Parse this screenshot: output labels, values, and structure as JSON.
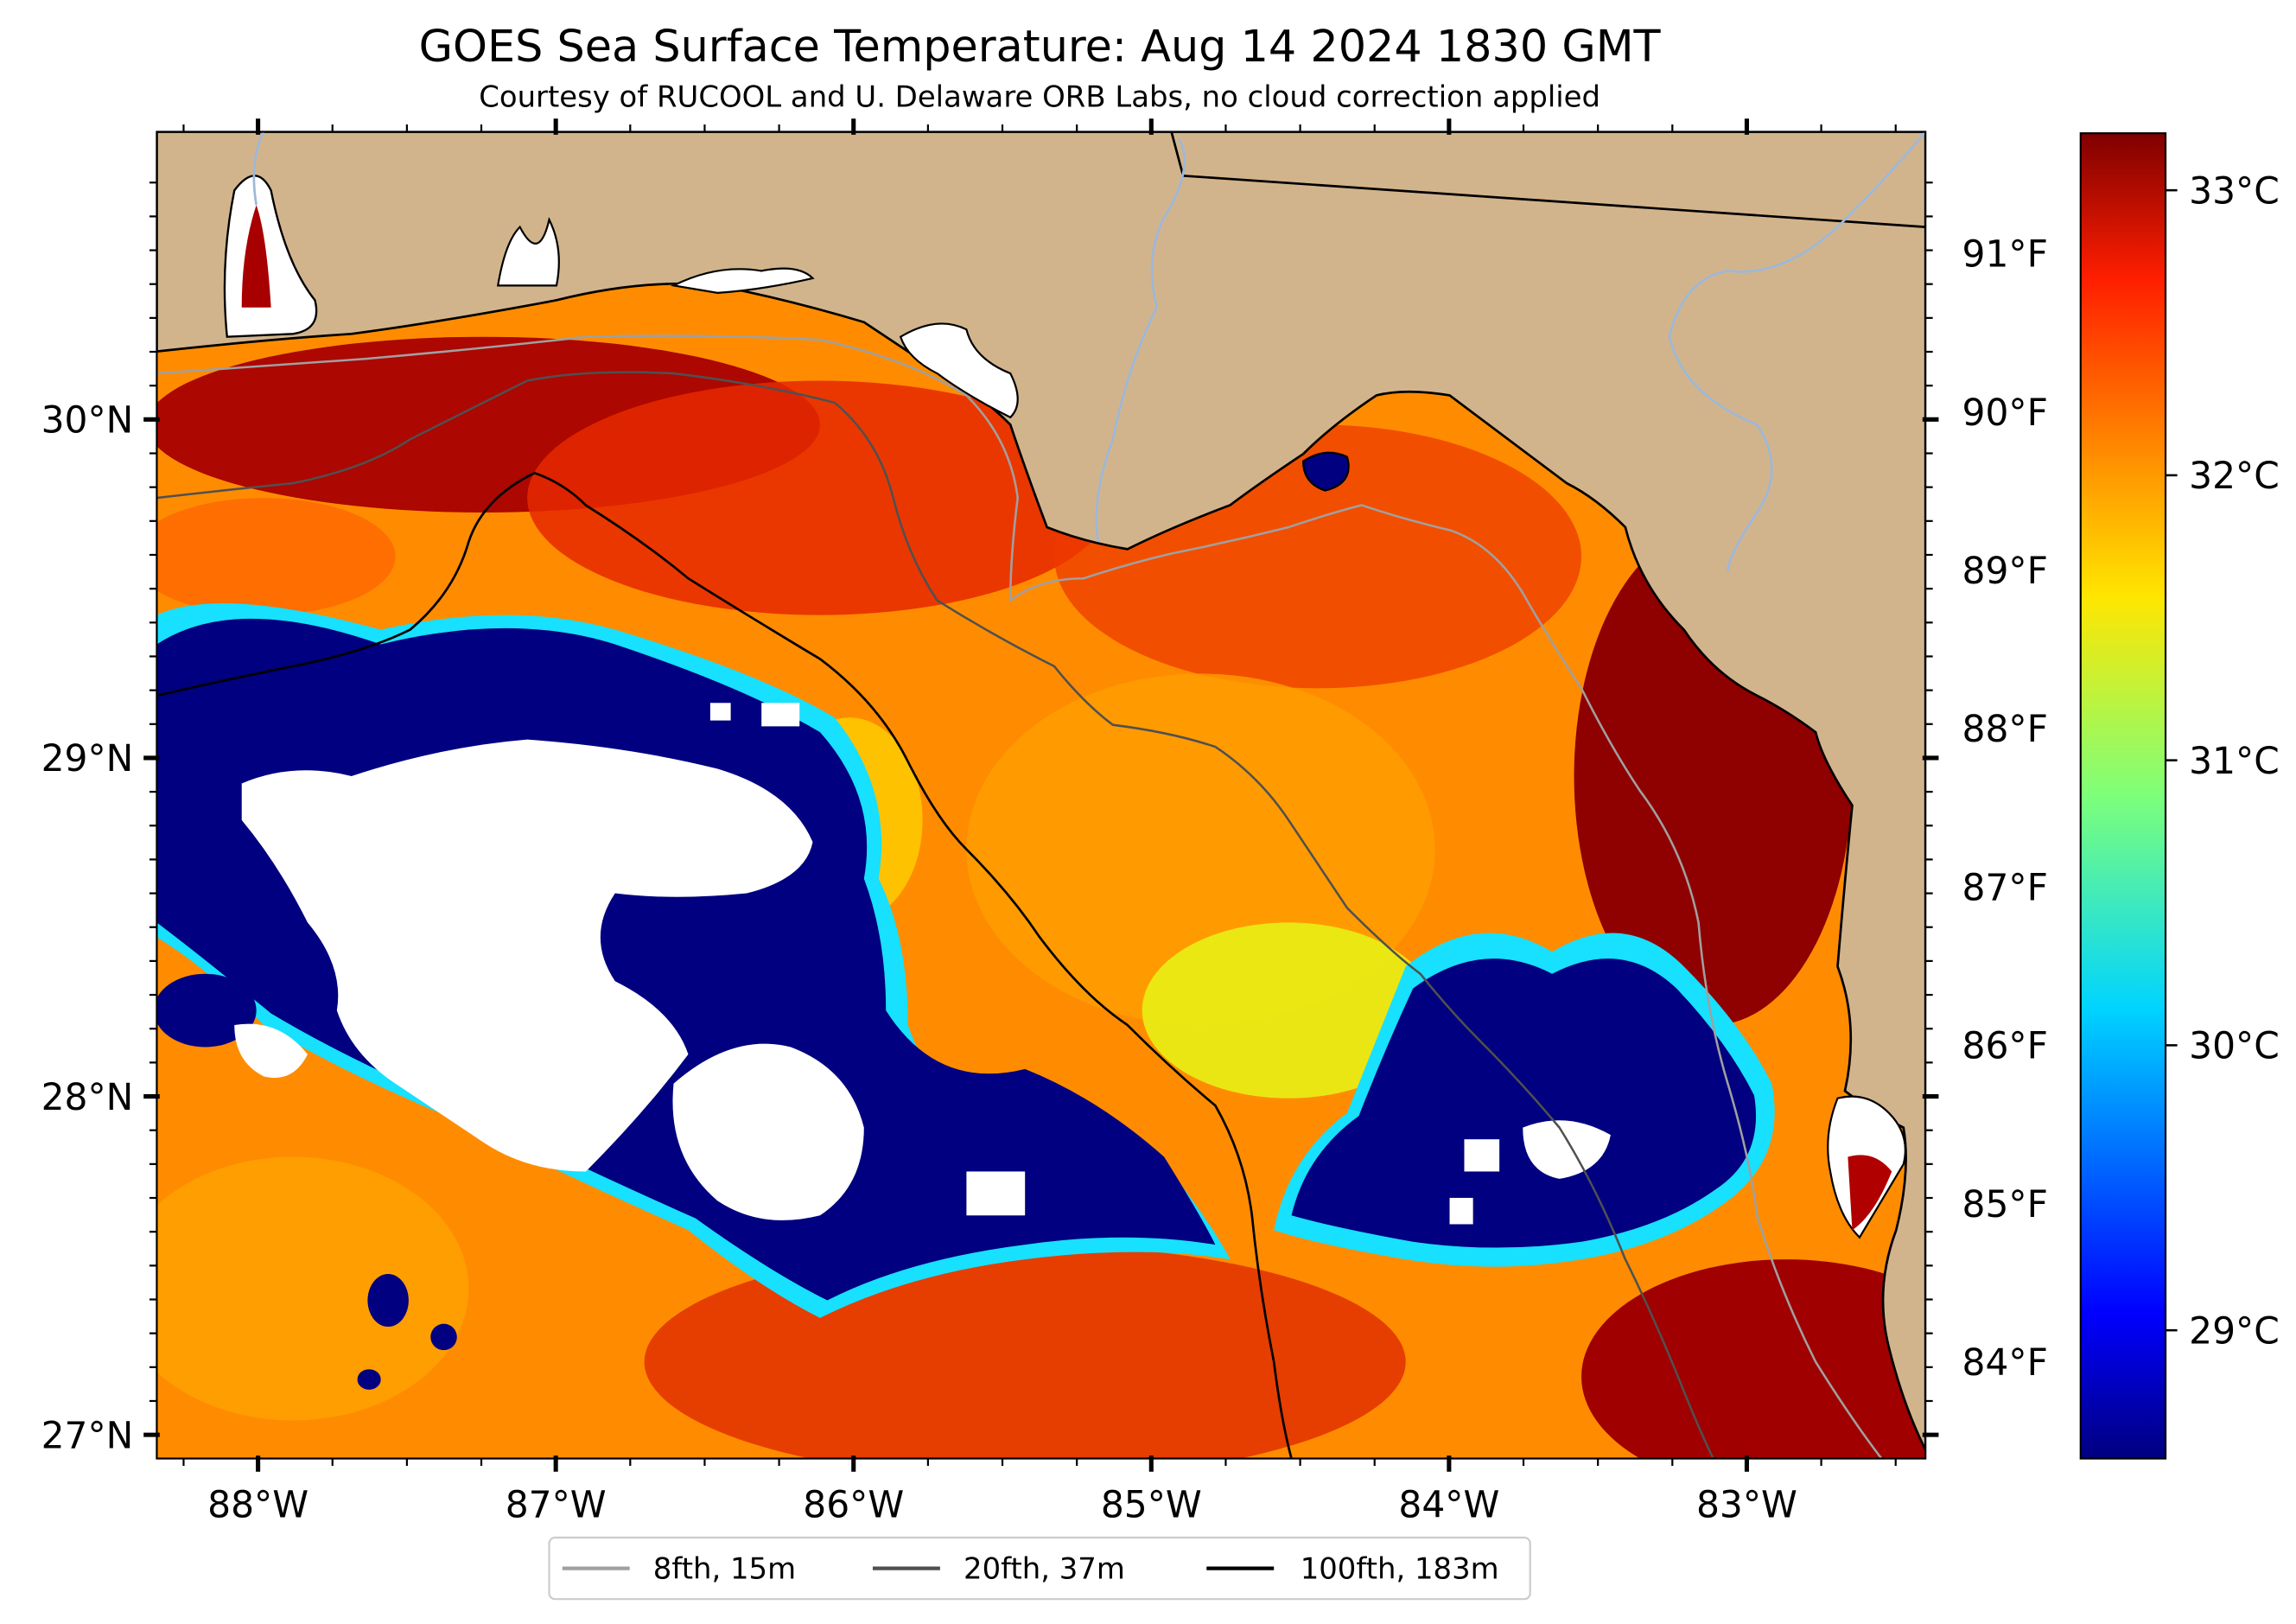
{
  "title": "GOES Sea Surface Temperature: Aug 14 2024 1830 GMT",
  "subtitle": "Courtesy of RUCOOL and U. Delaware ORB Labs, no cloud correction applied",
  "map": {
    "lon_range": [
      -88.34,
      -82.4
    ],
    "lat_range": [
      26.93,
      30.85
    ],
    "lon_ticks": [
      {
        "value": -88,
        "label": "88°W"
      },
      {
        "value": -87,
        "label": "87°W"
      },
      {
        "value": -86,
        "label": "86°W"
      },
      {
        "value": -85,
        "label": "85°W"
      },
      {
        "value": -84,
        "label": "84°W"
      },
      {
        "value": -83,
        "label": "83°W"
      }
    ],
    "lat_ticks": [
      {
        "value": 30,
        "label": "30°N"
      },
      {
        "value": 29,
        "label": "29°N"
      },
      {
        "value": 28,
        "label": "28°N"
      },
      {
        "value": 27,
        "label": "27°N"
      }
    ],
    "land_color": "#d2b48c",
    "no_data_color": "#ffffff",
    "cold_color": "#000080"
  },
  "colorbar": {
    "colormap": "jet",
    "range_c": [
      28.55,
      33.2
    ],
    "celsius_ticks": [
      {
        "value": 33,
        "label": "33°C"
      },
      {
        "value": 32,
        "label": "32°C"
      },
      {
        "value": 31,
        "label": "31°C"
      },
      {
        "value": 30,
        "label": "30°C"
      },
      {
        "value": 29,
        "label": "29°C"
      }
    ],
    "fahrenheit_ticks": [
      {
        "value": 91,
        "label": "91°F"
      },
      {
        "value": 90,
        "label": "90°F"
      },
      {
        "value": 89,
        "label": "89°F"
      },
      {
        "value": 88,
        "label": "88°F"
      },
      {
        "value": 87,
        "label": "87°F"
      },
      {
        "value": 86,
        "label": "86°F"
      },
      {
        "value": 85,
        "label": "85°F"
      },
      {
        "value": 84,
        "label": "84°F"
      }
    ]
  },
  "legend": {
    "items": [
      {
        "label": "8fth, 15m",
        "color": "#a0a0a0"
      },
      {
        "label": "20fth, 37m",
        "color": "#505050"
      },
      {
        "label": "100fth, 183m",
        "color": "#000000"
      }
    ]
  }
}
